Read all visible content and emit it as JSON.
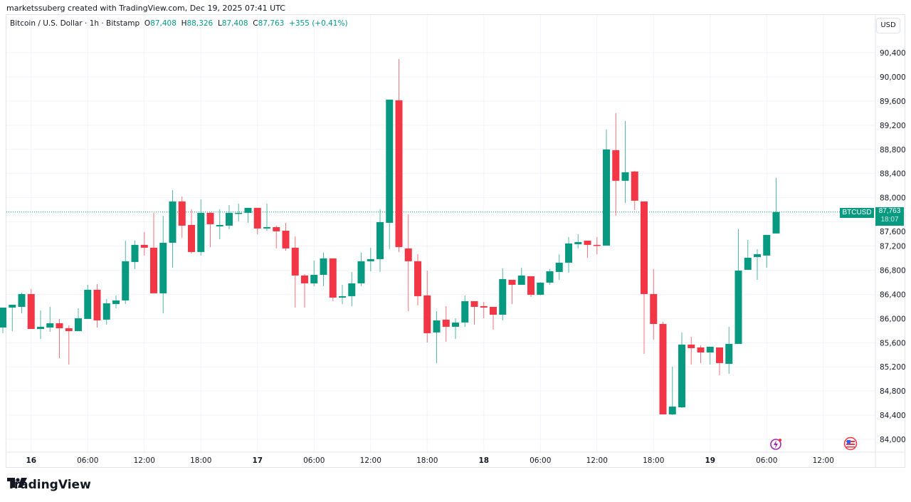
{
  "credit": "marketssuberg created with TradingView.com, Dec 19, 2025 07:41 UTC",
  "legend": {
    "symbol": "Bitcoin / U.S. Dollar · 1h · Bitstamp",
    "o_label": "O",
    "o": "87,408",
    "h_label": "H",
    "h": "88,326",
    "l_label": "L",
    "l": "87,408",
    "c_label": "C",
    "c": "87,763",
    "change": "+355 (+0.41%)"
  },
  "currency_button": "USD",
  "price_tag": {
    "symbol": "BTCUSD",
    "price": "87,763",
    "countdown": "18:07"
  },
  "brand": "TradingView",
  "icons": [
    "lightning-alert-icon",
    "us-flag-icon"
  ],
  "colors": {
    "up": "#089981",
    "down": "#f23645",
    "grid": "#f0f3fa",
    "last_price": "#089981"
  },
  "chart_data": {
    "type": "candlestick",
    "interval": "1h",
    "first_candle": "Dec 15 21:00",
    "last_price": 87763,
    "ylim": [
      83800,
      90700
    ],
    "y_ticks": [
      "90,400",
      "90,000",
      "89,600",
      "89,200",
      "88,800",
      "88,400",
      "88,000",
      "87,600",
      "87,200",
      "86,800",
      "86,400",
      "86,000",
      "85,600",
      "85,200",
      "84,800",
      "84,400",
      "84,000"
    ],
    "y_tick_values": [
      90400,
      90000,
      89600,
      89200,
      88800,
      88400,
      88000,
      87600,
      87200,
      86800,
      86400,
      86000,
      85600,
      85200,
      84800,
      84400,
      84000
    ],
    "x_ticks": [
      {
        "label": "16",
        "hour": 3,
        "day": true
      },
      {
        "label": "06:00",
        "hour": 9
      },
      {
        "label": "12:00",
        "hour": 15
      },
      {
        "label": "18:00",
        "hour": 21
      },
      {
        "label": "17",
        "hour": 27,
        "day": true
      },
      {
        "label": "06:00",
        "hour": 33
      },
      {
        "label": "12:00",
        "hour": 39
      },
      {
        "label": "18:00",
        "hour": 45
      },
      {
        "label": "18",
        "hour": 51,
        "day": true
      },
      {
        "label": "06:00",
        "hour": 57
      },
      {
        "label": "12:00",
        "hour": 63
      },
      {
        "label": "18:00",
        "hour": 69
      },
      {
        "label": "19",
        "hour": 75,
        "day": true
      },
      {
        "label": "06:00",
        "hour": 81
      },
      {
        "label": "12:00",
        "hour": 87
      }
    ],
    "ohlc": [
      [
        85851,
        86181,
        85757,
        86181
      ],
      [
        86181,
        86230,
        85792,
        86228
      ],
      [
        86193,
        86429,
        86087,
        86405
      ],
      [
        86405,
        86488,
        85827,
        85827
      ],
      [
        85827,
        86134,
        85662,
        85863
      ],
      [
        85851,
        86193,
        85780,
        85922
      ],
      [
        85922,
        85993,
        85344,
        85839
      ],
      [
        85839,
        85886,
        85238,
        85792
      ],
      [
        85792,
        86169,
        85792,
        86004
      ],
      [
        85993,
        86558,
        85993,
        86476
      ],
      [
        86476,
        86570,
        85851,
        85969
      ],
      [
        85981,
        86323,
        85898,
        86252
      ],
      [
        86240,
        86382,
        86169,
        86299
      ],
      [
        86299,
        87289,
        86240,
        86948
      ],
      [
        86936,
        87289,
        86818,
        87219
      ],
      [
        87219,
        87431,
        87042,
        87172
      ],
      [
        87172,
        87749,
        86417,
        86417
      ],
      [
        86417,
        87702,
        86087,
        87254
      ],
      [
        87254,
        88127,
        86841,
        87938
      ],
      [
        87938,
        88020,
        87337,
        87537
      ],
      [
        87549,
        87808,
        87077,
        87101
      ],
      [
        87101,
        87973,
        87042,
        87749
      ],
      [
        87749,
        87761,
        87183,
        87561
      ],
      [
        87525,
        87808,
        87313,
        87549
      ],
      [
        87537,
        87879,
        87478,
        87749
      ],
      [
        87737,
        87902,
        87608,
        87749
      ],
      [
        87749,
        87832,
        87584,
        87832
      ],
      [
        87832,
        87832,
        87395,
        87490
      ],
      [
        87490,
        87902,
        87454,
        87513
      ],
      [
        87513,
        87537,
        87160,
        87443
      ],
      [
        87454,
        87584,
        87124,
        87160
      ],
      [
        87172,
        87360,
        86181,
        86712
      ],
      [
        86712,
        86735,
        86181,
        86582
      ],
      [
        86582,
        86959,
        86535,
        86723
      ],
      [
        86723,
        87089,
        86535,
        86995
      ],
      [
        86995,
        86995,
        86287,
        86346
      ],
      [
        86346,
        86558,
        86240,
        86370
      ],
      [
        86370,
        86771,
        86205,
        86582
      ],
      [
        86582,
        87089,
        86535,
        86948
      ],
      [
        86948,
        87172,
        86782,
        86983
      ],
      [
        86983,
        87808,
        86771,
        87596
      ],
      [
        87584,
        89624,
        87148,
        89624
      ],
      [
        89612,
        90296,
        87101,
        87183
      ],
      [
        87160,
        87726,
        86122,
        86948
      ],
      [
        86948,
        87065,
        86217,
        86370
      ],
      [
        86382,
        86794,
        85603,
        85757
      ],
      [
        85769,
        86122,
        85262,
        85969
      ],
      [
        85981,
        86205,
        85615,
        85863
      ],
      [
        85863,
        86004,
        85662,
        85934
      ],
      [
        85934,
        86382,
        85863,
        86287
      ],
      [
        86287,
        86287,
        85898,
        86193
      ],
      [
        86205,
        86275,
        86004,
        86181
      ],
      [
        86193,
        86193,
        85816,
        86063
      ],
      [
        86063,
        86830,
        85969,
        86653
      ],
      [
        86641,
        86641,
        86240,
        86558
      ],
      [
        86558,
        86841,
        86558,
        86712
      ],
      [
        86700,
        86700,
        86358,
        86393
      ],
      [
        86393,
        86600,
        86382,
        86594
      ],
      [
        86594,
        86818,
        86558,
        86782
      ],
      [
        86771,
        87065,
        86641,
        86924
      ],
      [
        86924,
        87348,
        86759,
        87242
      ],
      [
        87230,
        87395,
        87160,
        87266
      ],
      [
        87289,
        87289,
        87006,
        87219
      ],
      [
        87219,
        87348,
        87065,
        87207
      ],
      [
        87207,
        89129,
        87207,
        88799
      ],
      [
        88787,
        89400,
        87702,
        88280
      ],
      [
        88280,
        89270,
        87914,
        88421
      ],
      [
        88433,
        88445,
        87796,
        87950
      ],
      [
        87938,
        87938,
        85415,
        86405
      ],
      [
        86405,
        86818,
        85651,
        85910
      ],
      [
        85910,
        85945,
        84413,
        84413
      ],
      [
        84413,
        85203,
        84401,
        84542
      ],
      [
        84530,
        85769,
        84519,
        85568
      ],
      [
        85568,
        85698,
        85238,
        85509
      ],
      [
        85521,
        85556,
        85262,
        85438
      ],
      [
        85438,
        85533,
        85238,
        85533
      ],
      [
        85521,
        85521,
        85061,
        85262
      ],
      [
        85250,
        85863,
        85085,
        85580
      ],
      [
        85580,
        87478,
        85580,
        86794
      ],
      [
        86806,
        87301,
        86806,
        87006
      ],
      [
        87018,
        87148,
        86641,
        87065
      ],
      [
        87042,
        87384,
        86841,
        87384
      ],
      [
        87408,
        88326,
        87408,
        87763
      ]
    ]
  }
}
